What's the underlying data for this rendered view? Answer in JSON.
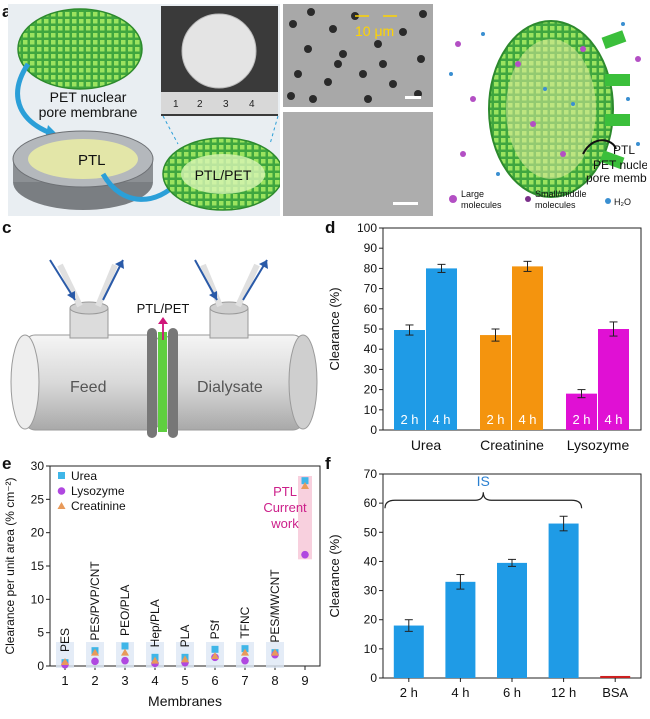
{
  "panel_labels": {
    "a": "a",
    "b": "b",
    "c": "c",
    "d": "d",
    "e": "e",
    "f": "f"
  },
  "panel_a": {
    "membrane_label_1": "PET nuclear",
    "membrane_label_2": "pore membrane",
    "ptl_label": "PTL",
    "ptl_pet_label": "PTL/PET",
    "ruler_numbers": [
      "1",
      "2",
      "3",
      "4"
    ]
  },
  "panel_b": {
    "scale_label": "10 μm",
    "ptl_label": "PTL",
    "membrane_label_1": "PET nuclear",
    "membrane_label_2": "pore membrane",
    "legend": [
      {
        "text1": "Large",
        "text2": "molecules",
        "color": "#b34fc4"
      },
      {
        "text1": "Small/middle",
        "text2": "molecules",
        "color": "#7a2f8a"
      },
      {
        "text1": "H₂O",
        "text2": "",
        "color": "#3a8fd1"
      }
    ]
  },
  "panel_c": {
    "ptl_pet_label": "PTL/PET",
    "feed_label": "Feed",
    "dialysate_label": "Dialysate"
  },
  "chart_data": [
    {
      "panel": "d",
      "type": "bar",
      "ylabel": "Clearance (%)",
      "ylim": [
        0,
        100
      ],
      "yticks": [
        0,
        10,
        20,
        30,
        40,
        50,
        60,
        70,
        80,
        90,
        100
      ],
      "groups": [
        {
          "name": "Urea",
          "color": "#1f9be6",
          "bars": [
            {
              "label": "2 h",
              "value": 49.5,
              "err": 2.5
            },
            {
              "label": "4 h",
              "value": 80,
              "err": 2
            }
          ]
        },
        {
          "name": "Creatinine",
          "color": "#f4940e",
          "bars": [
            {
              "label": "2 h",
              "value": 47,
              "err": 3
            },
            {
              "label": "4 h",
              "value": 81,
              "err": 2.5
            }
          ]
        },
        {
          "name": "Lysozyme",
          "color": "#e010d4",
          "bars": [
            {
              "label": "2 h",
              "value": 18,
              "err": 2
            },
            {
              "label": "4 h",
              "value": 50,
              "err": 3.5
            }
          ]
        }
      ]
    },
    {
      "panel": "e",
      "type": "scatter",
      "xlabel": "Membranes",
      "ylabel": "Clearance per unit area (% cm⁻²)",
      "ylim": [
        0,
        30
      ],
      "yticks": [
        0,
        5,
        10,
        15,
        20,
        25,
        30
      ],
      "xticks": [
        1,
        2,
        3,
        4,
        5,
        6,
        7,
        8,
        9
      ],
      "series": [
        {
          "name": "Urea",
          "color": "#3fb6e8",
          "marker": "square",
          "x": [
            1,
            2,
            3,
            4,
            5,
            6,
            7,
            8,
            9
          ],
          "y": [
            0.5,
            2.3,
            3.0,
            1.3,
            1.3,
            2.5,
            2.6,
            2.0,
            27.8
          ]
        },
        {
          "name": "Lysozyme",
          "color": "#b048e0",
          "marker": "circle",
          "x": [
            1,
            2,
            3,
            4,
            5,
            6,
            7,
            8,
            9
          ],
          "y": [
            0.2,
            0.7,
            0.8,
            0.4,
            0.5,
            1.3,
            0.8,
            1.7,
            16.7
          ]
        },
        {
          "name": "Creatinine",
          "color": "#e89a5a",
          "marker": "triangle",
          "x": [
            1,
            2,
            3,
            4,
            5,
            6,
            7,
            8,
            9
          ],
          "y": [
            0.6,
            2.0,
            2.0,
            0.8,
            1.0,
            1.5,
            2.0,
            2.0,
            27.0
          ]
        }
      ],
      "point_labels": [
        "PES",
        "PES/PVP/CNT",
        "PEO/PLA",
        "Hep/PLA",
        "PLA",
        "PSf",
        "TFNC",
        "PES/MWCNT"
      ],
      "annotation_lines": [
        "PTL",
        "Current",
        "work"
      ]
    },
    {
      "panel": "f",
      "type": "bar",
      "ylabel": "Clearance (%)",
      "ylim": [
        0,
        70
      ],
      "yticks": [
        0,
        10,
        20,
        30,
        40,
        50,
        60,
        70
      ],
      "categories": [
        "2 h",
        "4 h",
        "6 h",
        "12 h",
        "BSA"
      ],
      "values": [
        18,
        33,
        39.5,
        53,
        0.7
      ],
      "errors": [
        2,
        2.5,
        1.2,
        2.5,
        0
      ],
      "colors": [
        "#1f9be6",
        "#1f9be6",
        "#1f9be6",
        "#1f9be6",
        "#cc1f1f"
      ],
      "bracket_label": "IS"
    }
  ]
}
